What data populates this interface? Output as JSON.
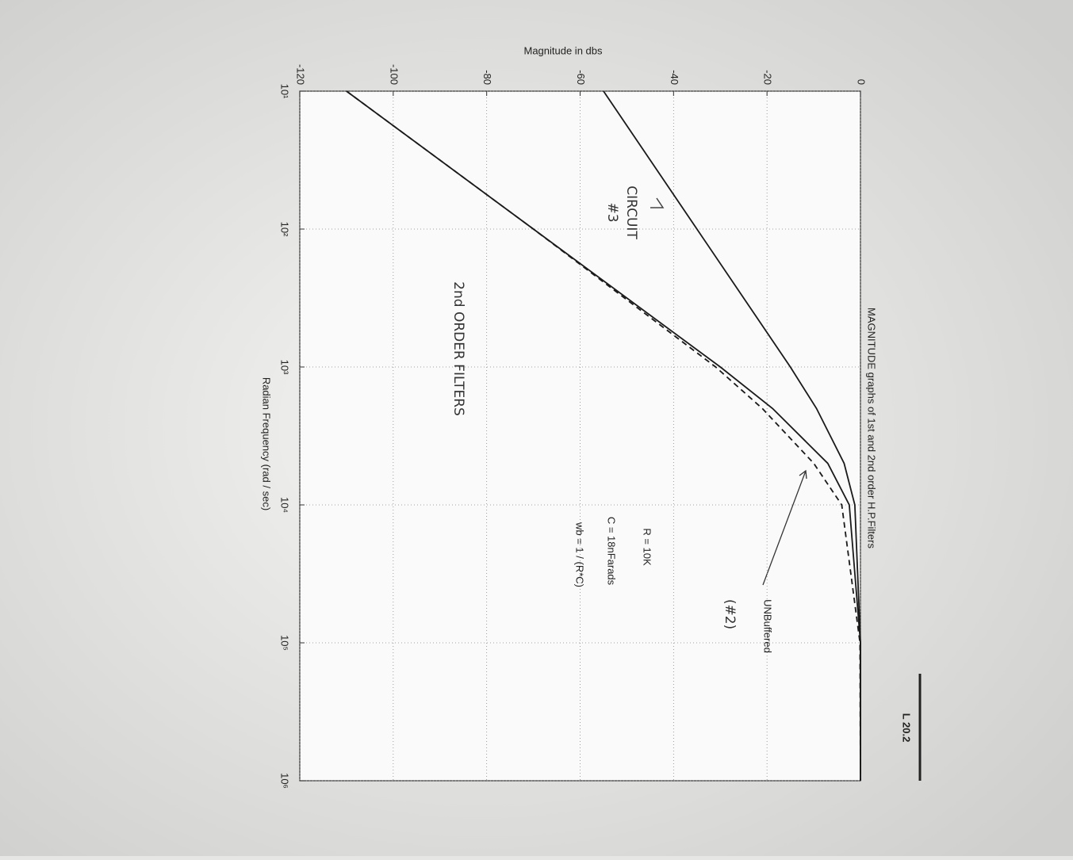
{
  "chart_data": {
    "type": "line",
    "title": "MAGNITUDE graphs of 1st and 2nd order H.P.Filters",
    "xlabel": "Radian Frequency (rad / sec)",
    "ylabel": "Magnitude in dbs",
    "xscale": "log",
    "x": [
      10,
      100,
      1000,
      2000,
      5000,
      10000,
      100000,
      1000000
    ],
    "series": [
      {
        "color": "#1a1a1a",
        "dashed": false,
        "values": [
          -55,
          -35,
          -15,
          -9.4,
          -3.5,
          -1.2,
          0,
          0
        ]
      },
      {
        "color": "#1a1a1a",
        "dashed": false,
        "values": [
          -110,
          -70,
          -30,
          -18.8,
          -7,
          -2.4,
          0,
          0
        ]
      },
      {
        "color": "#1a1a1a",
        "dashed": true,
        "values": [
          -110,
          -70,
          -31,
          -21,
          -10,
          -4,
          -0.1,
          0
        ]
      }
    ],
    "xlim": [
      10,
      1000000
    ],
    "xticks": [
      {
        "value": 10,
        "label": "10¹"
      },
      {
        "value": 100,
        "label": "10²"
      },
      {
        "value": 1000,
        "label": "10³"
      },
      {
        "value": 10000,
        "label": "10⁴"
      },
      {
        "value": 100000,
        "label": "10⁵"
      },
      {
        "value": 1000000,
        "label": "10⁶"
      }
    ],
    "ylim": [
      -120,
      0
    ],
    "yticks": [
      -120,
      -100,
      -80,
      -60,
      -40,
      -20,
      0
    ],
    "grid": true,
    "annotations": [
      "R = 10K",
      "C = 18nFarads",
      "wb = 1 / (R*C)",
      "UNBuffered",
      "(#2)",
      "CIRCUIT",
      "#3",
      "2nd ORDER FILTERS",
      "L 20.2"
    ]
  }
}
